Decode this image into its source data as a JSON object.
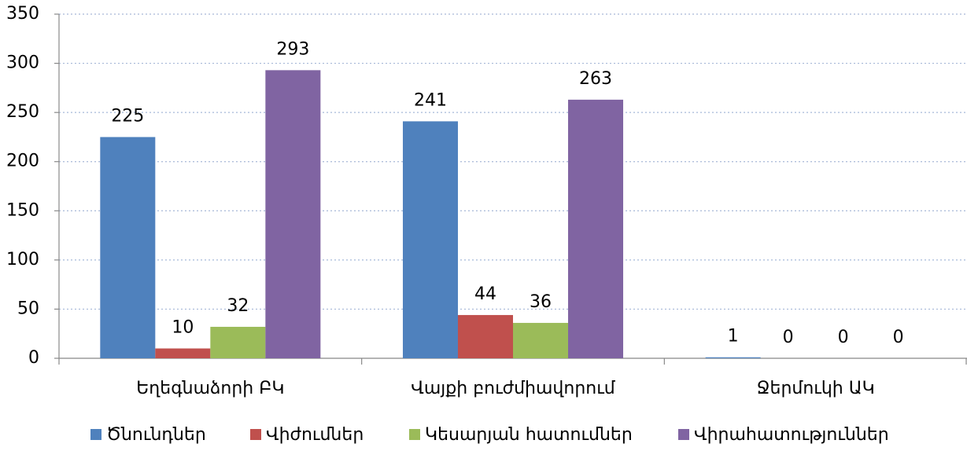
{
  "chart_data": {
    "type": "bar",
    "categories": [
      "Եղեգնաձորի ԲԿ",
      "Վայքի բուժմիավորում",
      "Ջերմուկի ԱԿ"
    ],
    "series": [
      {
        "name": "Ծնունդներ",
        "color": "#4f81bd",
        "values": [
          225,
          241,
          1
        ]
      },
      {
        "name": "Վիժումներ",
        "color": "#c0504d",
        "values": [
          10,
          44,
          0
        ]
      },
      {
        "name": "Կեսարյան հատումներ",
        "color": "#9bbb59",
        "values": [
          32,
          36,
          0
        ]
      },
      {
        "name": "Վիրահատություններ",
        "color": "#8064a2",
        "values": [
          293,
          263,
          0
        ]
      }
    ],
    "ylim": [
      0,
      350
    ],
    "yticks": [
      0,
      50,
      100,
      150,
      200,
      250,
      300,
      350
    ],
    "grid": true,
    "legend": "bottom"
  }
}
